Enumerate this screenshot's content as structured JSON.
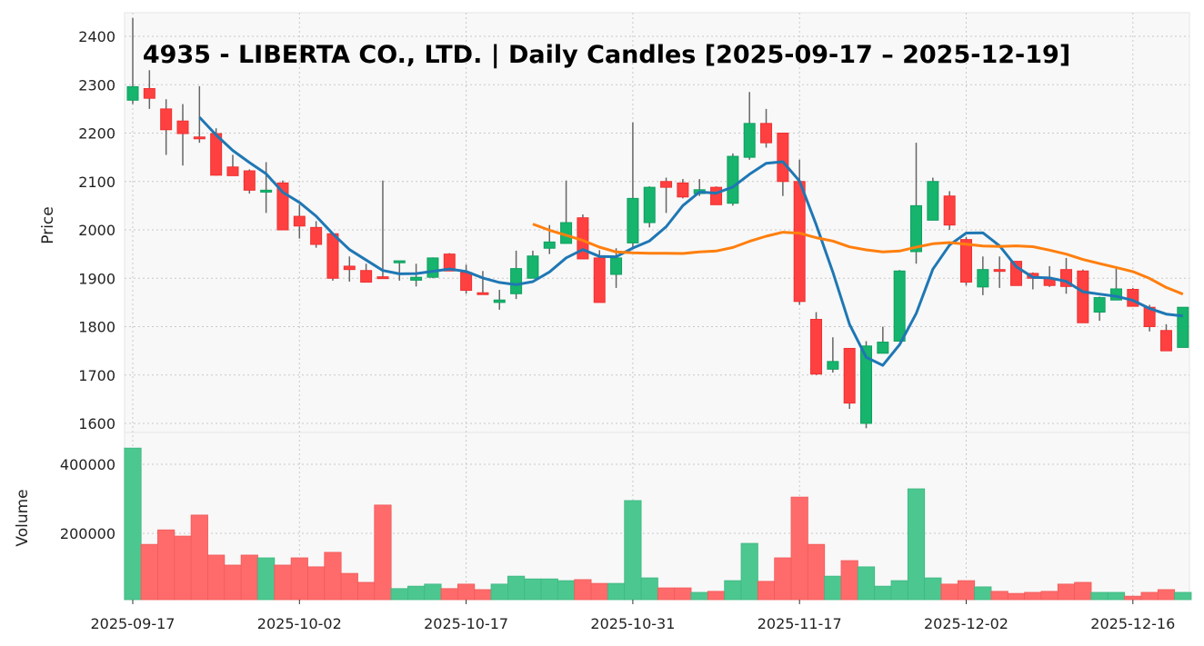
{
  "chart_data": {
    "type": "candlestick",
    "title": "4935 - LIBERTA CO., LTD. | Daily Candles [2025-09-17 – 2025-12-19]",
    "ylabel": "Price",
    "volume_label": "Volume",
    "ylim": [
      1580,
      2450
    ],
    "volume_ylim": [
      0,
      450000
    ],
    "price_ticks": [
      1600,
      1700,
      1800,
      1900,
      2000,
      2100,
      2200,
      2300,
      2400
    ],
    "volume_ticks": [
      200000,
      400000
    ],
    "x_tick_labels": [
      {
        "index": 0,
        "label": "2025-09-17"
      },
      {
        "index": 10,
        "label": "2025-10-02"
      },
      {
        "index": 20,
        "label": "2025-10-17"
      },
      {
        "index": 30,
        "label": "2025-10-31"
      },
      {
        "index": 40,
        "label": "2025-11-17"
      },
      {
        "index": 50,
        "label": "2025-12-02"
      },
      {
        "index": 60,
        "label": "2025-12-16"
      }
    ],
    "moving_averages": [
      {
        "name": "MA5",
        "window": 5,
        "color": "#1f77b4"
      },
      {
        "name": "MA25",
        "window": 25,
        "color": "#ff7f0e"
      }
    ],
    "colors": {
      "up": "#16b46c",
      "down": "#ff4040",
      "up_vol": "#4cc790",
      "down_vol": "#ff6b6b",
      "wick": "#666666"
    },
    "candles": [
      [
        2268,
        2438,
        2260,
        2296,
        447000
      ],
      [
        2292,
        2330,
        2250,
        2272,
        168000
      ],
      [
        2250,
        2270,
        2155,
        2207,
        210000
      ],
      [
        2225,
        2260,
        2133,
        2199,
        192000
      ],
      [
        2192,
        2297,
        2180,
        2190,
        253000
      ],
      [
        2199,
        2210,
        2112,
        2113,
        137000
      ],
      [
        2130,
        2155,
        2112,
        2112,
        108000
      ],
      [
        2122,
        2125,
        2075,
        2082,
        137000
      ],
      [
        2078,
        2140,
        2035,
        2082,
        129000
      ],
      [
        2097,
        2102,
        2000,
        2000,
        108000
      ],
      [
        2028,
        2052,
        1982,
        2008,
        129000
      ],
      [
        2005,
        2018,
        1963,
        1970,
        103000
      ],
      [
        1992,
        1992,
        1895,
        1900,
        145000
      ],
      [
        1925,
        1945,
        1893,
        1918,
        84000
      ],
      [
        1916,
        1930,
        1892,
        1892,
        58000
      ],
      [
        1903,
        2102,
        1900,
        1900,
        282000
      ],
      [
        1932,
        1936,
        1895,
        1936,
        40000
      ],
      [
        1896,
        1930,
        1883,
        1902,
        47000
      ],
      [
        1902,
        1943,
        1900,
        1942,
        53000
      ],
      [
        1950,
        1952,
        1915,
        1915,
        40000
      ],
      [
        1912,
        1928,
        1868,
        1875,
        53000
      ],
      [
        1870,
        1915,
        1866,
        1869,
        37000
      ],
      [
        1850,
        1876,
        1835,
        1855,
        53000
      ],
      [
        1868,
        1957,
        1857,
        1920,
        76000
      ],
      [
        1900,
        1957,
        1900,
        1946,
        68000
      ],
      [
        1962,
        2010,
        1950,
        1975,
        68000
      ],
      [
        1972,
        2102,
        1972,
        2015,
        63000
      ],
      [
        2025,
        2032,
        1940,
        1940,
        66000
      ],
      [
        1942,
        1958,
        1850,
        1850,
        55000
      ],
      [
        1908,
        1962,
        1880,
        1942,
        55000
      ],
      [
        1973,
        2222,
        1965,
        2065,
        295000
      ],
      [
        2015,
        2090,
        2005,
        2088,
        71000
      ],
      [
        2100,
        2108,
        2035,
        2088,
        42000
      ],
      [
        2097,
        2105,
        2065,
        2068,
        42000
      ],
      [
        2075,
        2105,
        2070,
        2083,
        29000
      ],
      [
        2088,
        2090,
        2052,
        2052,
        32000
      ],
      [
        2055,
        2158,
        2050,
        2152,
        63000
      ],
      [
        2150,
        2285,
        2145,
        2220,
        171000
      ],
      [
        2220,
        2250,
        2170,
        2180,
        61000
      ],
      [
        2200,
        2200,
        2070,
        2100,
        129000
      ],
      [
        2100,
        2145,
        1845,
        1852,
        305000
      ],
      [
        1815,
        1830,
        1700,
        1702,
        168000
      ],
      [
        1712,
        1778,
        1705,
        1728,
        76000
      ],
      [
        1755,
        1755,
        1630,
        1642,
        121000
      ],
      [
        1600,
        1770,
        1590,
        1760,
        103000
      ],
      [
        1745,
        1800,
        1745,
        1768,
        47000
      ],
      [
        1770,
        1917,
        1770,
        1915,
        63000
      ],
      [
        1955,
        2180,
        1930,
        2050,
        329000
      ],
      [
        2020,
        2108,
        2020,
        2100,
        71000
      ],
      [
        2070,
        2080,
        2000,
        2010,
        53000
      ],
      [
        1980,
        1985,
        1885,
        1892,
        63000
      ],
      [
        1882,
        1945,
        1865,
        1918,
        45000
      ],
      [
        1918,
        1945,
        1880,
        1915,
        32000
      ],
      [
        1935,
        1935,
        1885,
        1885,
        26000
      ],
      [
        1910,
        1912,
        1877,
        1900,
        29000
      ],
      [
        1900,
        1925,
        1882,
        1885,
        32000
      ],
      [
        1918,
        1942,
        1868,
        1883,
        53000
      ],
      [
        1915,
        1918,
        1808,
        1808,
        58000
      ],
      [
        1830,
        1862,
        1812,
        1860,
        29000
      ],
      [
        1855,
        1920,
        1855,
        1878,
        29000
      ],
      [
        1877,
        1880,
        1842,
        1842,
        18000
      ],
      [
        1840,
        1845,
        1790,
        1800,
        29000
      ],
      [
        1792,
        1805,
        1750,
        1750,
        37000
      ],
      [
        1757,
        1840,
        1757,
        1840,
        29000
      ]
    ]
  }
}
